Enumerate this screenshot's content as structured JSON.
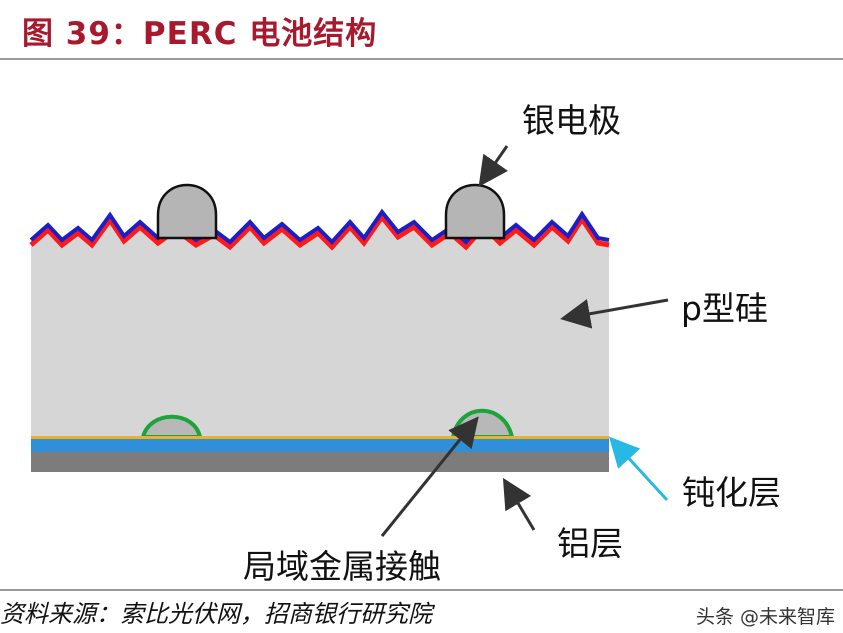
{
  "figure": {
    "title": "图 39：PERC 电池结构",
    "source": "资料来源：索比光伏网，招商银行研究院",
    "watermark": "头条 @未来智库"
  },
  "labels": {
    "silver_electrode": "银电极",
    "p_silicon": "p型硅",
    "passivation_layer": "钝化层",
    "aluminum_layer": "铝层",
    "local_metal_contact": "局域金属接触"
  },
  "colors": {
    "title": "#a8192e",
    "silicon": "#d6d6d6",
    "front_blue": "#1a1fc9",
    "front_red": "#ff1a1a",
    "passivation_blue": "#2f8fd8",
    "passivation_orange": "#f0b020",
    "aluminum": "#7c7c7c",
    "contact_green": "#1ca33a",
    "pointer_cyan": "#27b8e6"
  }
}
